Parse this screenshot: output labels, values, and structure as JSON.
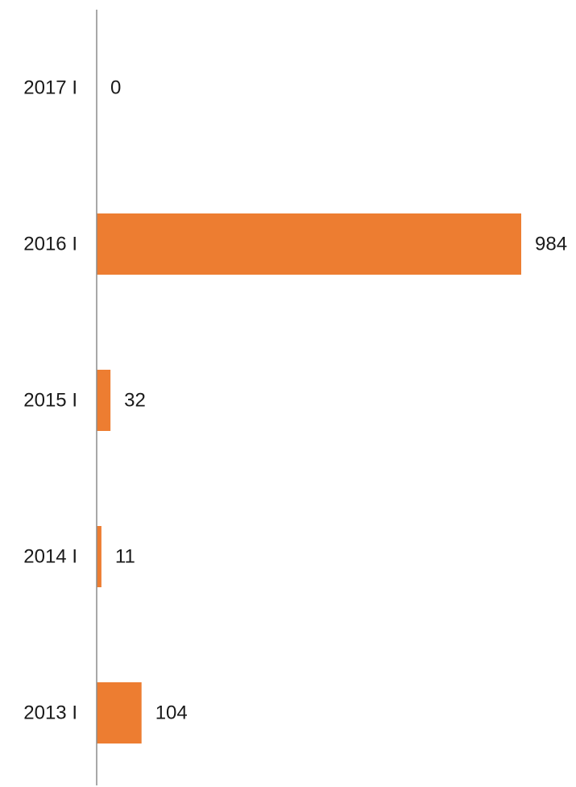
{
  "chart_data": {
    "type": "bar",
    "orientation": "horizontal",
    "categories": [
      "2017 I",
      "2016 I",
      "2015 I",
      "2014 I",
      "2013 I"
    ],
    "values": [
      0,
      984,
      32,
      11,
      104
    ],
    "bar_color": "#ED7D31",
    "axis_color": "#8C8C8C",
    "data_labels": true,
    "grid": false,
    "legend": "none"
  }
}
